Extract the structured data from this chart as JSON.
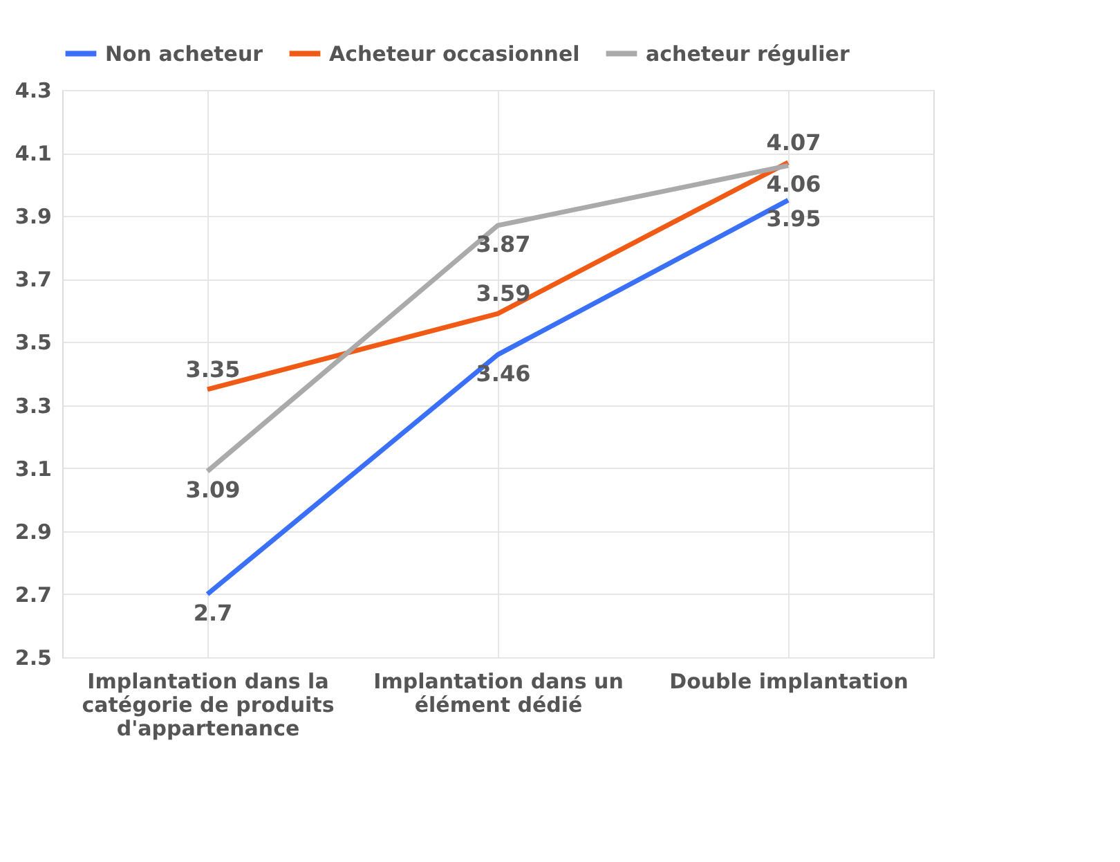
{
  "chart_data": {
    "type": "line",
    "categories": [
      "Implantation dans la catégorie de produits d'appartenance",
      "Implantation dans un élément dédié",
      "Double implantation"
    ],
    "series": [
      {
        "name": "Non acheteur",
        "color": "#3a6ff7",
        "values": [
          2.7,
          3.46,
          3.95
        ]
      },
      {
        "name": "Acheteur occasionnel",
        "color": "#f05a14",
        "values": [
          3.35,
          3.59,
          4.07
        ]
      },
      {
        "name": "acheteur régulier",
        "color": "#aaaaaa",
        "values": [
          3.09,
          3.87,
          4.06
        ]
      }
    ],
    "ylim": [
      2.5,
      4.3
    ],
    "yticks": [
      2.5,
      2.7,
      2.9,
      3.1,
      3.3,
      3.5,
      3.7,
      3.9,
      4.1,
      4.3
    ],
    "grid": true,
    "legend": "top",
    "data_labels": true,
    "marker": "none",
    "line_style": "solid"
  }
}
